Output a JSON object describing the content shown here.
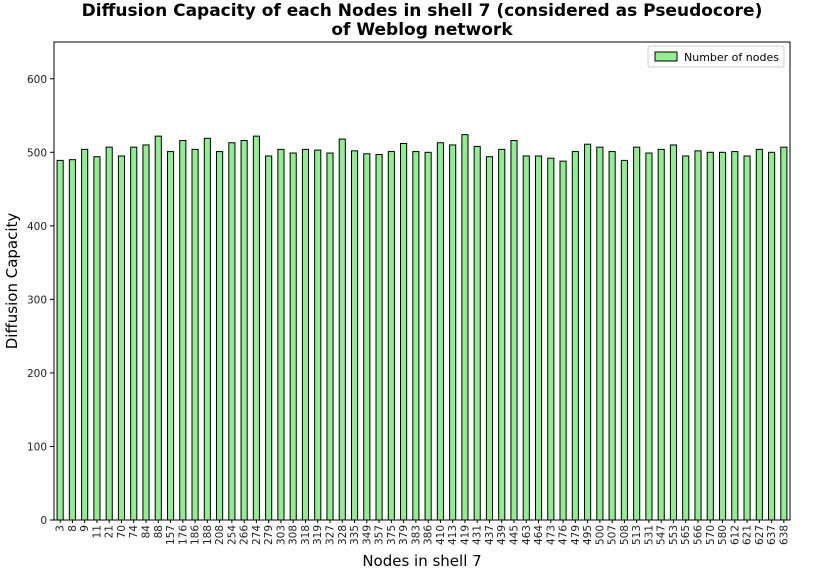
{
  "chart_data": {
    "type": "bar",
    "title_lines": [
      "Diffusion Capacity of each Nodes in shell 7 (considered as Pseudocore)",
      "of Weblog network"
    ],
    "xlabel": "Nodes in shell 7",
    "ylabel": "Diffusion Capacity",
    "ylim": [
      0,
      650
    ],
    "yticks": [
      0,
      100,
      200,
      300,
      400,
      500,
      600
    ],
    "grid": false,
    "legend_position": "top-right",
    "series": [
      {
        "name": "Number of nodes",
        "color": "#90ee90",
        "edge_color": "#000000",
        "values": [
          489,
          490,
          504,
          494,
          507,
          495,
          507,
          510,
          522,
          501,
          516,
          504,
          519,
          501,
          513,
          516,
          522,
          495,
          504,
          499,
          504,
          503,
          499,
          518,
          502,
          498,
          497,
          501,
          512,
          501,
          500,
          513,
          510,
          524,
          508,
          494,
          504,
          516,
          495,
          495,
          492,
          488,
          501,
          511,
          507,
          501,
          489,
          507,
          499,
          504,
          510,
          495,
          502,
          500,
          500,
          501,
          495,
          504,
          500,
          507
        ]
      }
    ],
    "categories": [
      "3",
      "8",
      "9",
      "11",
      "21",
      "70",
      "74",
      "84",
      "88",
      "157",
      "176",
      "186",
      "188",
      "208",
      "254",
      "266",
      "274",
      "279",
      "303",
      "308",
      "318",
      "319",
      "327",
      "328",
      "335",
      "349",
      "357",
      "375",
      "379",
      "383",
      "386",
      "410",
      "413",
      "419",
      "431",
      "437",
      "439",
      "445",
      "463",
      "464",
      "473",
      "476",
      "479",
      "495",
      "500",
      "507",
      "508",
      "513",
      "531",
      "547",
      "553",
      "565",
      "566",
      "570",
      "580",
      "612",
      "621",
      "627",
      "637",
      "638"
    ]
  }
}
